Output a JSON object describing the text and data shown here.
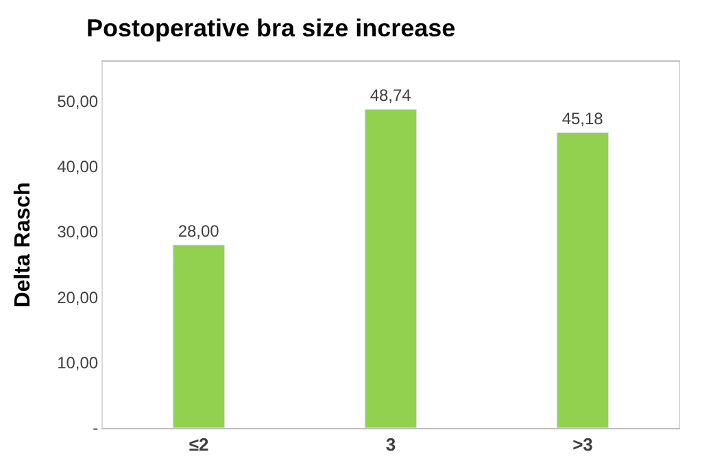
{
  "chart_data": {
    "type": "bar",
    "title": "Postoperative bra size increase",
    "ylabel": "Delta Rasch",
    "categories": [
      "≤2",
      "3",
      ">3"
    ],
    "values": [
      28.0,
      48.74,
      45.18
    ],
    "value_labels": [
      "28,00",
      "48,74",
      "45,18"
    ],
    "color": "#92d050",
    "ylim": [
      0,
      56
    ],
    "yticks": [
      {
        "value": 0,
        "label": "-"
      },
      {
        "value": 10,
        "label": "10,00"
      },
      {
        "value": 20,
        "label": "20,00"
      },
      {
        "value": 30,
        "label": "30,00"
      },
      {
        "value": 40,
        "label": "40,00"
      },
      {
        "value": 50,
        "label": "50,00"
      }
    ],
    "legend": false
  }
}
